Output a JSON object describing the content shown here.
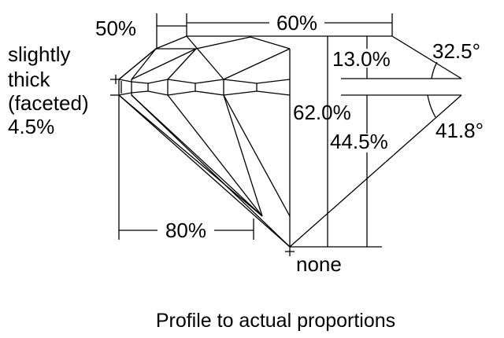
{
  "labels": {
    "table_dim": "50%",
    "crown_width_dim": "60%",
    "girdle_line1": "slightly",
    "girdle_line2": "thick",
    "girdle_line3": "(faceted)",
    "girdle_line4": "4.5%",
    "crown_height": "13.0%",
    "crown_angle": "32.5°",
    "total_depth": "62.0%",
    "pavilion_depth": "44.5%",
    "pavilion_angle": "41.8°",
    "lower_half": "80%",
    "culet": "none"
  },
  "caption": "Profile to actual proportions"
}
